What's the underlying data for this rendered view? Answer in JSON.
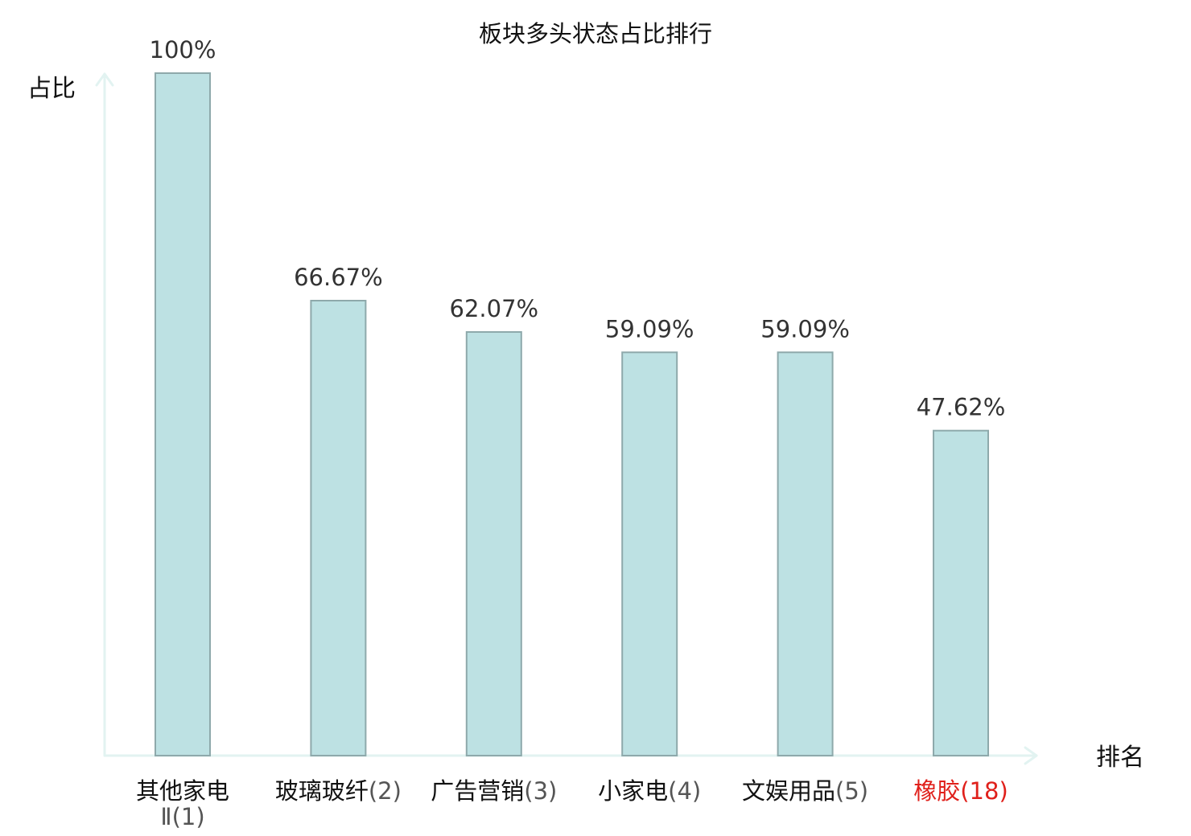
{
  "chart_data": {
    "type": "bar",
    "title": "板块多头状态占比排行",
    "ylabel": "占比",
    "xlabel": "排名",
    "ylim": [
      0,
      100
    ],
    "grid": false,
    "legend": "none",
    "categories": [
      {
        "name": "其他家电",
        "name_line2": "Ⅱ",
        "rank": "(1)",
        "highlight": false
      },
      {
        "name": "玻璃玻纤",
        "name_line2": "",
        "rank": "(2)",
        "highlight": false
      },
      {
        "name": "广告营销",
        "name_line2": "",
        "rank": "(3)",
        "highlight": false
      },
      {
        "name": "小家电",
        "name_line2": "",
        "rank": "(4)",
        "highlight": false
      },
      {
        "name": "文娱用品",
        "name_line2": "",
        "rank": "(5)",
        "highlight": false
      },
      {
        "name": "橡胶",
        "name_line2": "",
        "rank": "(18)",
        "highlight": true
      }
    ],
    "values": [
      100,
      66.67,
      62.07,
      59.09,
      59.09,
      47.62
    ],
    "value_labels": [
      "100%",
      "66.67%",
      "62.07%",
      "59.09%",
      "59.09%",
      "47.62%"
    ]
  },
  "colors": {
    "bar_fill": "#bde1e3",
    "bar_stroke": "#8ea9ab",
    "axis": "#e2f3f1",
    "text": "#111111",
    "rank_text": "#555555",
    "highlight": "#e0201b"
  }
}
